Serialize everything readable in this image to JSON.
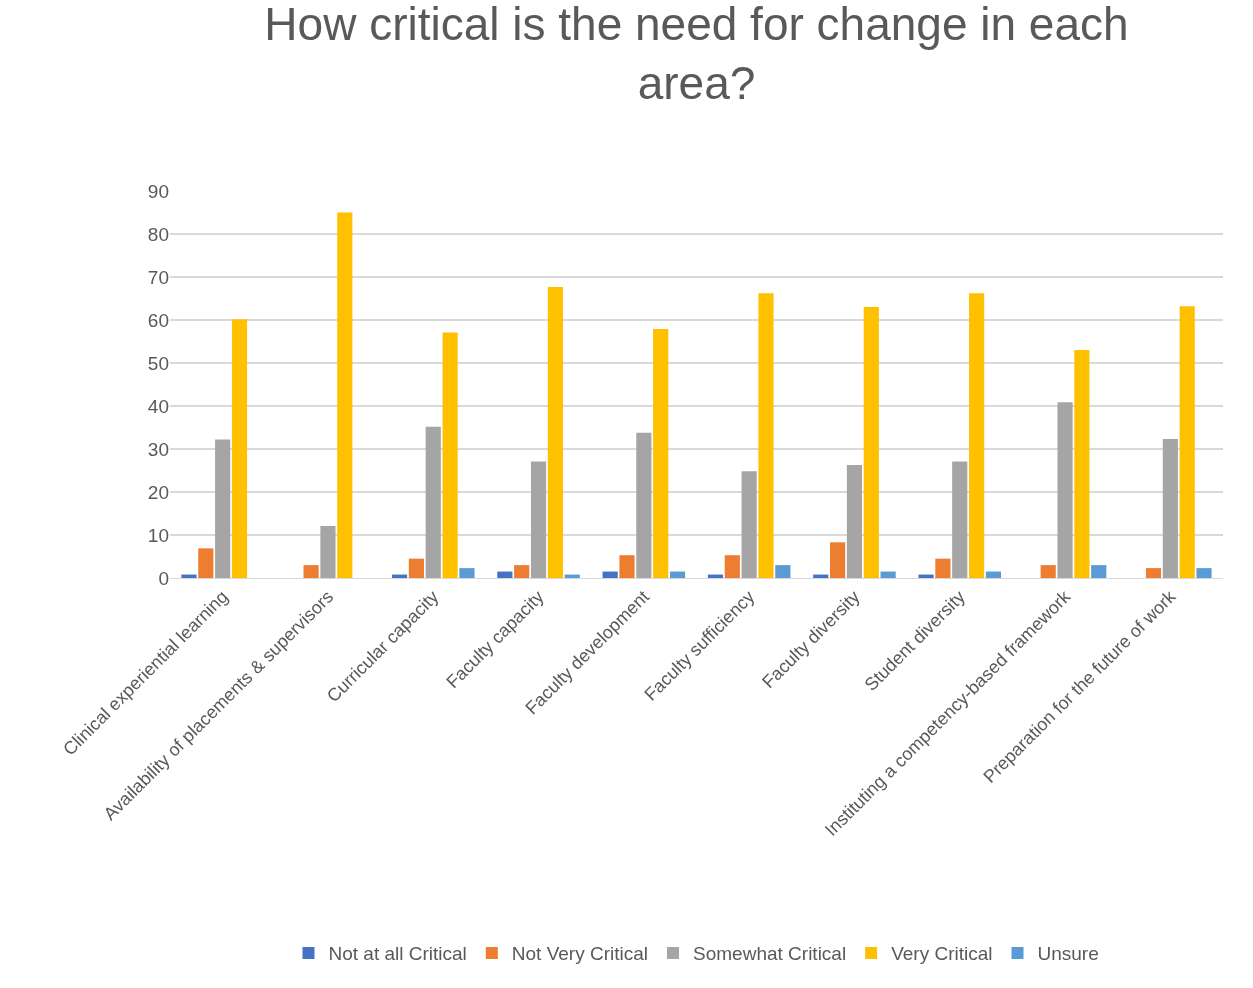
{
  "chart_data": {
    "type": "bar",
    "title": "How critical is the need for change in each area?",
    "categories": [
      "Clinical experiential learning",
      "Availability of placements & supervisors",
      "Curricular capacity",
      "Faculty capacity",
      "Faculty development",
      "Faculty sufficiency",
      "Faculty diversity",
      "Student diversity",
      "Instituting a competency-based framework",
      "Preparation for the future of work"
    ],
    "series": [
      {
        "name": "Not at all Critical",
        "color": "#4472c4",
        "values": [
          0.8,
          0,
          0.8,
          1.5,
          1.5,
          0.8,
          0.8,
          0.8,
          0,
          0
        ]
      },
      {
        "name": "Not Very Critical",
        "color": "#ed7d31",
        "values": [
          6.9,
          3.0,
          4.5,
          3.0,
          5.3,
          5.3,
          8.3,
          4.5,
          3.0,
          2.3
        ]
      },
      {
        "name": "Somewhat Critical",
        "color": "#a5a5a5",
        "values": [
          32.2,
          12.1,
          35.2,
          27.1,
          33.8,
          24.8,
          26.3,
          27.1,
          40.9,
          32.3
        ]
      },
      {
        "name": "Very Critical",
        "color": "#ffc000",
        "values": [
          60.2,
          85,
          57.1,
          67.7,
          57.9,
          66.2,
          63,
          66.2,
          53,
          63.2
        ]
      },
      {
        "name": "Unsure",
        "color": "#5b9bd5",
        "values": [
          0,
          0,
          2.3,
          0.8,
          1.5,
          3.0,
          1.5,
          1.5,
          3.0,
          2.3
        ]
      }
    ],
    "ylim": [
      0,
      90
    ],
    "yticks": [
      0,
      10,
      20,
      30,
      40,
      50,
      60,
      70,
      80,
      90
    ],
    "grid": "y",
    "legend": "bottom"
  }
}
